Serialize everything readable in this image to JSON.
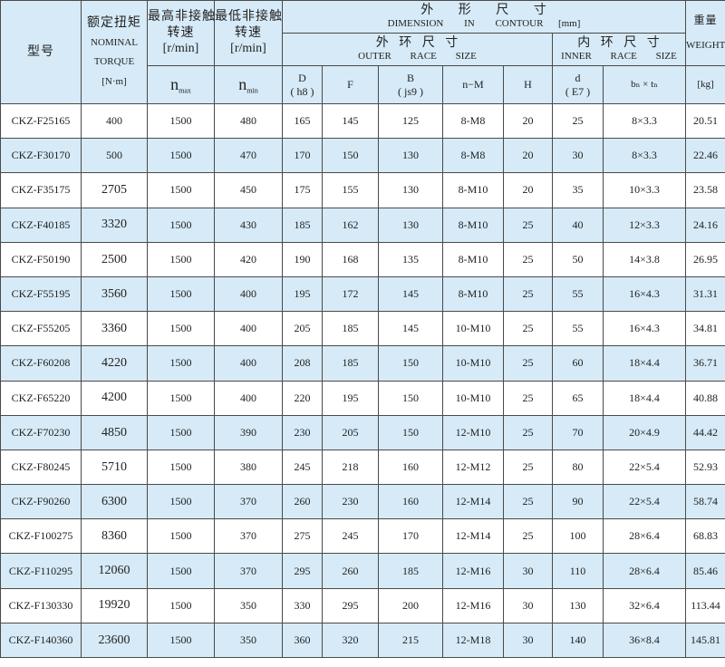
{
  "header": {
    "model": "型号",
    "torque": {
      "zh": "额定扭矩",
      "en1": "NOMINAL",
      "en2": "TORQUE",
      "unit": "[N·m]"
    },
    "nmax": {
      "zh1": "最高非接触",
      "zh2": "转速",
      "unit": "[r/min]",
      "sym": "n",
      "sub": "max"
    },
    "nmin": {
      "zh1": "最低非接触",
      "zh2": "转速",
      "unit": "[r/min]",
      "sym": "n",
      "sub": "min"
    },
    "dimension": {
      "zh": "外 形 尺 寸",
      "en": "DIMENSION IN CONTOUR",
      "unit": "[mm]"
    },
    "outer": {
      "zh": "外 环 尺 寸",
      "en": "OUTER RACE SIZE"
    },
    "inner": {
      "zh": "内 环 尺 寸",
      "en": "INNER RACE SIZE"
    },
    "weight": {
      "zh": "重量",
      "en": "WEIGHT",
      "unit": "[kg]"
    },
    "cols": {
      "D": "D",
      "D_tol": "( h8 )",
      "F": "F",
      "B": "B",
      "B_tol": "( js9 )",
      "nM": "n−M",
      "H": "H",
      "d": "d",
      "d_tol": "( E7 )",
      "bt": "bₙ × tₙ"
    }
  },
  "rows": [
    [
      "CKZ-F25165",
      "400",
      "1500",
      "480",
      "165",
      "145",
      "125",
      "8-M8",
      "20",
      "25",
      "8×3.3",
      "20.51"
    ],
    [
      "CKZ-F30170",
      "500",
      "1500",
      "470",
      "170",
      "150",
      "130",
      "8-M8",
      "20",
      "30",
      "8×3.3",
      "22.46"
    ],
    [
      "CKZ-F35175",
      "2705",
      "1500",
      "450",
      "175",
      "155",
      "130",
      "8-M10",
      "20",
      "35",
      "10×3.3",
      "23.58"
    ],
    [
      "CKZ-F40185",
      "3320",
      "1500",
      "430",
      "185",
      "162",
      "130",
      "8-M10",
      "25",
      "40",
      "12×3.3",
      "24.16"
    ],
    [
      "CKZ-F50190",
      "2500",
      "1500",
      "420",
      "190",
      "168",
      "135",
      "8-M10",
      "25",
      "50",
      "14×3.8",
      "26.95"
    ],
    [
      "CKZ-F55195",
      "3560",
      "1500",
      "400",
      "195",
      "172",
      "145",
      "8-M10",
      "25",
      "55",
      "16×4.3",
      "31.31"
    ],
    [
      "CKZ-F55205",
      "3360",
      "1500",
      "400",
      "205",
      "185",
      "145",
      "10-M10",
      "25",
      "55",
      "16×4.3",
      "34.81"
    ],
    [
      "CKZ-F60208",
      "4220",
      "1500",
      "400",
      "208",
      "185",
      "150",
      "10-M10",
      "25",
      "60",
      "18×4.4",
      "36.71"
    ],
    [
      "CKZ-F65220",
      "4200",
      "1500",
      "400",
      "220",
      "195",
      "150",
      "10-M10",
      "25",
      "65",
      "18×4.4",
      "40.88"
    ],
    [
      "CKZ-F70230",
      "4850",
      "1500",
      "390",
      "230",
      "205",
      "150",
      "12-M10",
      "25",
      "70",
      "20×4.9",
      "44.42"
    ],
    [
      "CKZ-F80245",
      "5710",
      "1500",
      "380",
      "245",
      "218",
      "160",
      "12-M12",
      "25",
      "80",
      "22×5.4",
      "52.93"
    ],
    [
      "CKZ-F90260",
      "6300",
      "1500",
      "370",
      "260",
      "230",
      "160",
      "12-M14",
      "25",
      "90",
      "22×5.4",
      "58.74"
    ],
    [
      "CKZ-F100275",
      "8360",
      "1500",
      "370",
      "275",
      "245",
      "170",
      "12-M14",
      "25",
      "100",
      "28×6.4",
      "68.83"
    ],
    [
      "CKZ-F110295",
      "12060",
      "1500",
      "370",
      "295",
      "260",
      "185",
      "12-M16",
      "30",
      "110",
      "28×6.4",
      "85.46"
    ],
    [
      "CKZ-F130330",
      "19920",
      "1500",
      "350",
      "330",
      "295",
      "200",
      "12-M16",
      "30",
      "130",
      "32×6.4",
      "113.44"
    ],
    [
      "CKZ-F140360",
      "23600",
      "1500",
      "350",
      "360",
      "320",
      "215",
      "12-M18",
      "30",
      "140",
      "36×8.4",
      "145.81"
    ]
  ],
  "colors": {
    "header_bg": "#d6eaf7",
    "alt_row_bg": "#d6eaf7",
    "border": "#4a4a4a"
  }
}
